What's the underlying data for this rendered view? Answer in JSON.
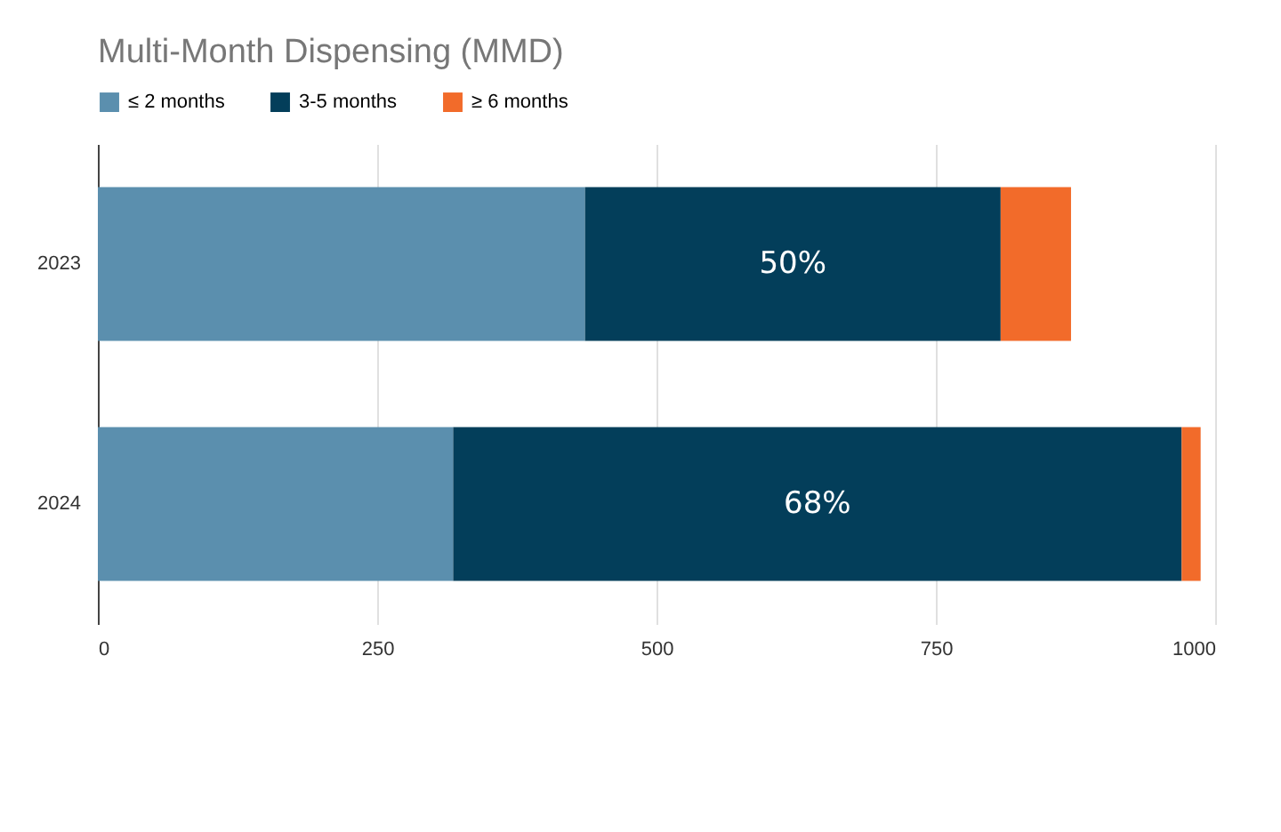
{
  "chart_data": {
    "type": "bar",
    "orientation": "horizontal",
    "stacked": true,
    "title": "Multi-Month Dispensing (MMD)",
    "categories": [
      "2023",
      "2024"
    ],
    "series": [
      {
        "name": "≤ 2 months",
        "color": "#5b8fae",
        "values": [
          436,
          318
        ]
      },
      {
        "name": "3-5 months",
        "color": "#033e5a",
        "values": [
          372,
          652
        ]
      },
      {
        "name": "≥ 6 months",
        "color": "#f26b2a",
        "values": [
          63,
          17
        ]
      }
    ],
    "xlim": [
      0,
      1000
    ],
    "xticks": [
      0,
      250,
      500,
      750,
      1000
    ],
    "grid": "x",
    "legend": "top",
    "annotations": [
      "50%",
      "68%"
    ]
  }
}
